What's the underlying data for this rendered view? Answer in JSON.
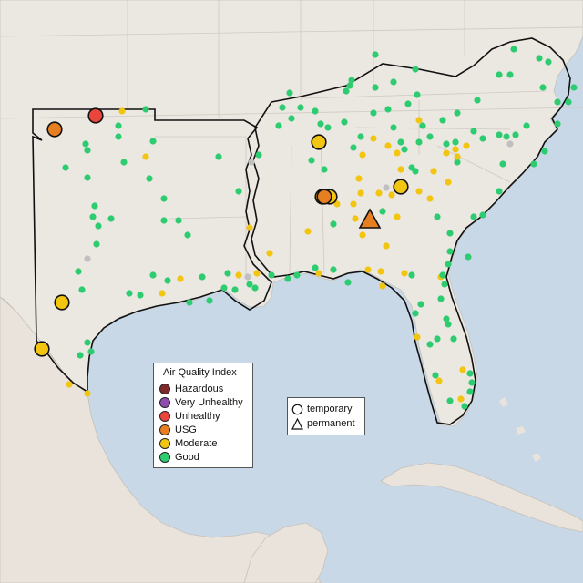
{
  "legend": {
    "title": "Air Quality Index",
    "levels": [
      {
        "label": "Hazardous",
        "color": "#7e2a2a"
      },
      {
        "label": "Very Unhealthy",
        "color": "#8f4bb0"
      },
      {
        "label": "Unhealthy",
        "color": "#e8453c"
      },
      {
        "label": "USG",
        "color": "#e67e22"
      },
      {
        "label": "Moderate",
        "color": "#f2c511"
      },
      {
        "label": "Good",
        "color": "#2ecc71"
      }
    ]
  },
  "type_legend": {
    "temporary": "temporary",
    "permanent": "permanent"
  },
  "colors": {
    "water": "#c8d8e6",
    "land": "#ebe7e1",
    "nodata": "#c0c0c0"
  }
}
